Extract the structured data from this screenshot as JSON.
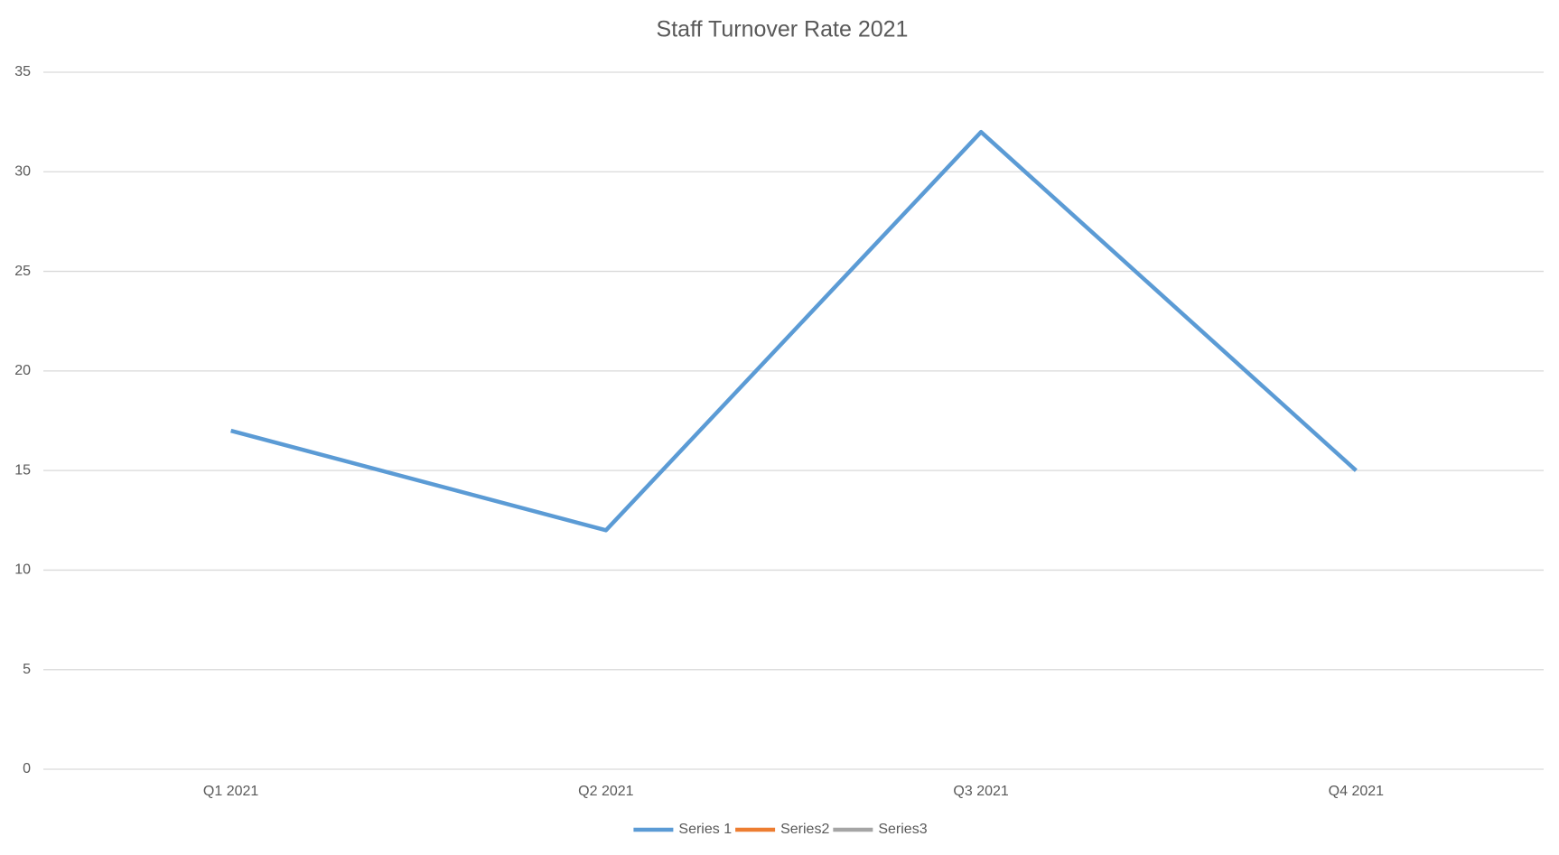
{
  "chart_data": {
    "type": "line",
    "title": "Staff Turnover Rate 2021",
    "categories": [
      "Q1 2021",
      "Q2 2021",
      "Q3 2021",
      "Q4 2021"
    ],
    "series": [
      {
        "name": "Series 1",
        "color": "#5b9bd5",
        "values": [
          17,
          12,
          32,
          15
        ]
      },
      {
        "name": "Series2",
        "color": "#ed7d31",
        "values": [
          null,
          null,
          null,
          null
        ]
      },
      {
        "name": "Series3",
        "color": "#a5a5a5",
        "values": [
          null,
          null,
          null,
          null
        ]
      }
    ],
    "ylim": [
      0,
      35
    ],
    "yticks": [
      0,
      5,
      10,
      15,
      20,
      25,
      30,
      35
    ],
    "grid": true,
    "legend": "bottom"
  }
}
